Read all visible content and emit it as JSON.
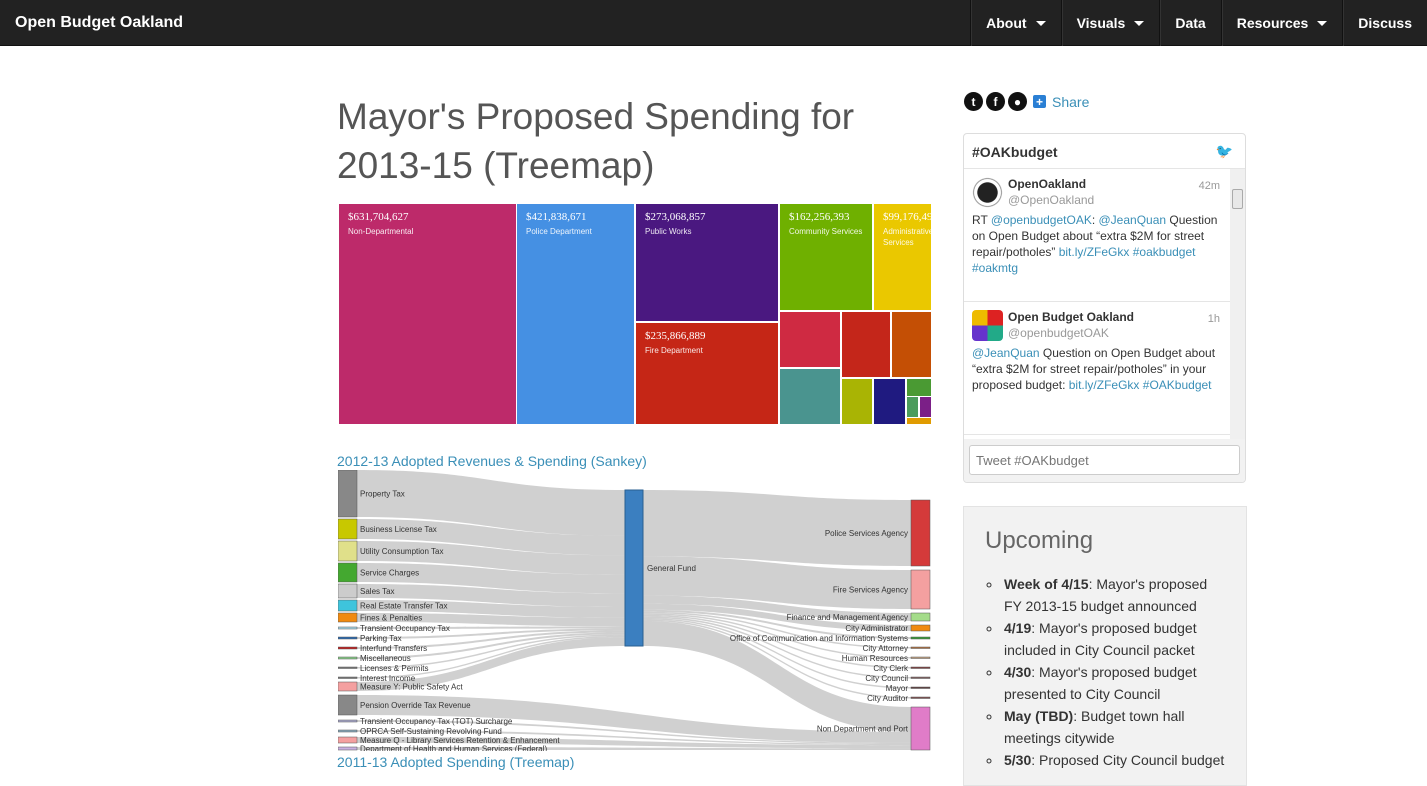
{
  "nav": {
    "brand": "Open Budget Oakland",
    "items": [
      {
        "label": "About",
        "dropdown": true
      },
      {
        "label": "Visuals",
        "dropdown": true
      },
      {
        "label": "Data",
        "dropdown": false
      },
      {
        "label": "Resources",
        "dropdown": true
      },
      {
        "label": "Discuss",
        "dropdown": false
      }
    ]
  },
  "title": "Mayor's Proposed Spending for 2013-15 (Treemap)",
  "treemap": {
    "cells": [
      {
        "value": "$631,704,627",
        "label": "Non-Departmental",
        "color": "#bd2a6a"
      },
      {
        "value": "$421,838,671",
        "label": "Police Department",
        "color": "#4590e3"
      },
      {
        "value": "$273,068,857",
        "label": "Public Works",
        "color": "#4a1880"
      },
      {
        "value": "$235,866,889",
        "label": "Fire Department",
        "color": "#c52616"
      },
      {
        "value": "$162,256,393",
        "label": "Community Services",
        "color": "#6fb000"
      },
      {
        "value": "$99,176,49",
        "label": "Administrative Services",
        "color": "#eac800"
      }
    ]
  },
  "sankey_link": "2012-13 Adopted Revenues & Spending (Sankey)",
  "sankey": {
    "sources": [
      "Property Tax",
      "Business License Tax",
      "Utility Consumption Tax",
      "Service Charges",
      "Sales Tax",
      "Real Estate Transfer Tax",
      "Fines & Penalties",
      "Transient Occupancy Tax",
      "Parking Tax",
      "Interfund Transfers",
      "Miscellaneous",
      "Licenses & Permits",
      "Interest Income",
      "Measure Y: Public Safety Act",
      "Pension Override Tax Revenue",
      "Transient Occupancy Tax (TOT) Surcharge",
      "OPRCA Self-Sustaining Revolving Fund",
      "Measure Q - Library Services Retention & Enhancement",
      "Department of Health and Human Services (Federal)"
    ],
    "middle": "General Fund",
    "targets": [
      "Police Services Agency",
      "Fire Services Agency",
      "Finance and Management Agency",
      "City Administrator",
      "Office of Communication and Information Systems",
      "City Attorney",
      "Human Resources",
      "City Clerk",
      "City Council",
      "Mayor",
      "City Auditor",
      "Non Department and Port"
    ]
  },
  "next_link": "2011-13 Adopted Spending (Treemap)",
  "social": {
    "share": "Share"
  },
  "twitter": {
    "title": "#OAKbudget",
    "placeholder": "Tweet #OAKbudget",
    "tweets": [
      {
        "name": "OpenOakland",
        "handle": "@OpenOakland",
        "time": "42m",
        "parts": [
          [
            "t",
            "RT "
          ],
          [
            "a",
            "@openbudgetOAK"
          ],
          [
            "t",
            ": "
          ],
          [
            "a",
            "@JeanQuan"
          ],
          [
            "t",
            " Question on Open Budget about “extra $2M for street repair/potholes” "
          ],
          [
            "a",
            "bit.ly/ZFeGkx"
          ],
          [
            "t",
            " "
          ],
          [
            "a",
            "#oakbudget"
          ],
          [
            "t",
            " "
          ],
          [
            "a",
            "#oakmtg"
          ]
        ]
      },
      {
        "name": "Open Budget Oakland",
        "handle": "@openbudgetOAK",
        "time": "1h",
        "parts": [
          [
            "a",
            "@JeanQuan"
          ],
          [
            "t",
            " Question on Open Budget about “extra $2M for street repair/potholes” in your proposed budget: "
          ],
          [
            "a",
            "bit.ly/ZFeGkx"
          ],
          [
            "t",
            " "
          ],
          [
            "a",
            "#OAKbudget"
          ]
        ]
      }
    ]
  },
  "upcoming": {
    "title": "Upcoming",
    "items": [
      {
        "date": "Week of 4/15",
        "text": ": Mayor's proposed FY 2013-15 budget announced"
      },
      {
        "date": "4/19",
        "text": ": Mayor's proposed budget included in City Council packet"
      },
      {
        "date": "4/30",
        "text": ": Mayor's proposed budget presented to City Council"
      },
      {
        "date": "May (TBD)",
        "text": ": Budget town hall meetings citywide"
      },
      {
        "date": "5/30",
        "text": ": Proposed City Council budget"
      }
    ]
  }
}
